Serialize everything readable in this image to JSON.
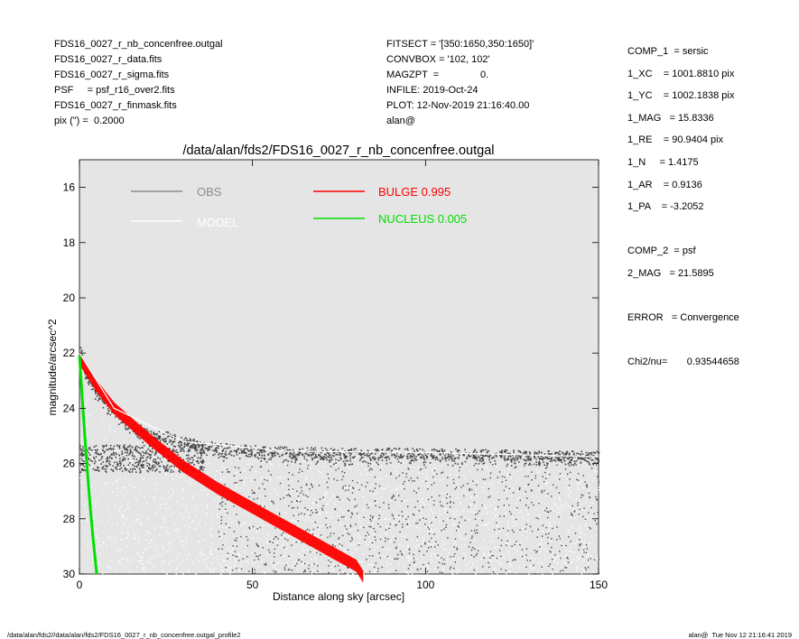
{
  "header_left": [
    "FDS16_0027_r_nb_concenfree.outgal",
    "FDS16_0027_r_data.fits",
    "FDS16_0027_r_sigma.fits",
    "PSF     = psf_r16_over2.fits",
    "FDS16_0027_r_finmask.fits",
    "pix (\") =  0.2000"
  ],
  "header_mid": [
    "FITSECT = '[350:1650,350:1650]'",
    "CONVBOX = '102, 102'",
    "MAGZPT  =               0.",
    "INFILE: 2019-Oct-24",
    "PLOT: 12-Nov-2019 21:16:40.00",
    "alan@"
  ],
  "fit_params": [
    "COMP_1  = sersic",
    "1_XC    = 1001.8810 pix",
    "1_YC    = 1002.1838 pix",
    "1_MAG   = 15.8336",
    "1_RE    = 90.9404 pix",
    "1_N     = 1.4175",
    "1_AR    = 0.9136",
    "1_PA    = -3.2052",
    "",
    "COMP_2  = psf",
    "2_MAG   = 21.5895",
    "",
    "ERROR   = Convergence",
    "",
    "Chi2/nu=       0.93544658"
  ],
  "footer_left": "/data/alan/fds2//data/alan/fds2/FDS16_0027_r_nb_concenfree.outgal_profile2",
  "footer_right": "alan@  Tue Nov 12 21:16:41 2019",
  "chart_data": {
    "type": "scatter",
    "title": "/data/alan/fds2/FDS16_0027_r_nb_concenfree.outgal",
    "xlabel": "Distance along sky [arcsec]",
    "ylabel": "magnitude/arcsec^2",
    "xlim": [
      0,
      150
    ],
    "ylim": [
      30,
      15
    ],
    "y_inverted": true,
    "xticks": [
      0,
      50,
      100,
      150
    ],
    "yticks": [
      16,
      18,
      20,
      22,
      24,
      26,
      28,
      30
    ],
    "background": "#e5e5e5",
    "grid": false,
    "legend": [
      {
        "label": "OBS",
        "color": "#8c8c8c"
      },
      {
        "label": "MODEL",
        "color": "#ffffff"
      },
      {
        "label": "BULGE  0.995",
        "color": "#ff0000"
      },
      {
        "label": "NUCLEUS  0.005",
        "color": "#00e000"
      }
    ],
    "series": [
      {
        "name": "OBS",
        "kind": "points",
        "color": "#444444",
        "points": [
          [
            0.2,
            21.6
          ],
          [
            0.5,
            22.0
          ],
          [
            1,
            22.4
          ],
          [
            2,
            22.8
          ],
          [
            3,
            23.0
          ],
          [
            5,
            23.3
          ],
          [
            8,
            23.8
          ],
          [
            10,
            24.0
          ],
          [
            15,
            24.6
          ],
          [
            20,
            24.9
          ],
          [
            25,
            25.0
          ],
          [
            30,
            25.2
          ],
          [
            40,
            25.4
          ],
          [
            50,
            25.5
          ],
          [
            60,
            25.55
          ],
          [
            80,
            25.6
          ],
          [
            100,
            25.6
          ],
          [
            120,
            25.65
          ],
          [
            140,
            25.7
          ],
          [
            150,
            25.8
          ],
          [
            5,
            23.8
          ],
          [
            10,
            24.8
          ],
          [
            15,
            25.6
          ],
          [
            20,
            26.6
          ],
          [
            25,
            27.6
          ],
          [
            30,
            28.7
          ],
          [
            35,
            29.6
          ]
        ]
      },
      {
        "name": "MODEL",
        "kind": "line",
        "color": "#ffffff",
        "points": [
          [
            0,
            22.0
          ],
          [
            10,
            24.0
          ],
          [
            30,
            25.2
          ],
          [
            60,
            25.55
          ],
          [
            100,
            25.6
          ],
          [
            150,
            25.75
          ]
        ]
      },
      {
        "name": "BULGE  0.995",
        "kind": "band",
        "color": "#ff0000",
        "points": [
          [
            0,
            22.1
          ],
          [
            5,
            23.1
          ],
          [
            10,
            23.9
          ],
          [
            20,
            25.0
          ],
          [
            30,
            26.0
          ],
          [
            40,
            26.8
          ],
          [
            50,
            27.5
          ],
          [
            60,
            28.2
          ],
          [
            70,
            28.9
          ],
          [
            80,
            29.6
          ],
          [
            82,
            30.0
          ]
        ]
      },
      {
        "name": "NUCLEUS  0.005",
        "kind": "line",
        "color": "#00e000",
        "points": [
          [
            0,
            22.1
          ],
          [
            1,
            24.0
          ],
          [
            2,
            25.8
          ],
          [
            3,
            27.4
          ],
          [
            4,
            28.8
          ],
          [
            5,
            30.0
          ]
        ]
      }
    ]
  }
}
